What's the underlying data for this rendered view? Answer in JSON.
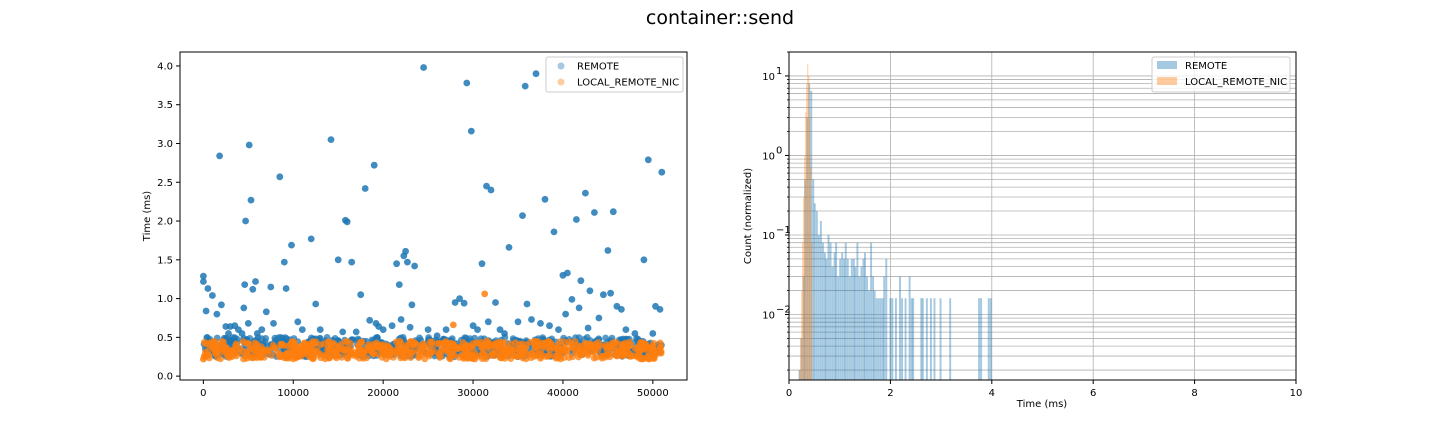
{
  "figure": {
    "suptitle": "container::send"
  },
  "chart_data": [
    {
      "type": "scatter",
      "xlabel": "",
      "ylabel": "Time (ms)",
      "xlim": [
        -2600,
        53800
      ],
      "ylim": [
        -0.05,
        4.18
      ],
      "xticks": [
        0,
        10000,
        20000,
        30000,
        40000,
        50000
      ],
      "xtick_labels": [
        "0",
        "10000",
        "20000",
        "30000",
        "40000",
        "50000"
      ],
      "yticks": [
        0.0,
        0.5,
        1.0,
        1.5,
        2.0,
        2.5,
        3.0,
        3.5,
        4.0
      ],
      "ytick_labels": [
        "0.0",
        "0.5",
        "1.0",
        "1.5",
        "2.0",
        "2.5",
        "3.0",
        "3.5",
        "4.0"
      ],
      "grid": false,
      "legend": {
        "placement": "top-right",
        "entries": [
          {
            "name": "REMOTE",
            "color": "#1f77b4"
          },
          {
            "name": "LOCAL_REMOTE_NIC",
            "color": "#ff7f0e"
          }
        ]
      },
      "series": [
        {
          "name": "REMOTE",
          "color": "#1f77b4",
          "band": {
            "x": [
              0,
              51000
            ],
            "y": [
              0.25,
              0.5
            ]
          },
          "points": [
            [
              0,
              1.29
            ],
            [
              0,
              1.22
            ],
            [
              300,
              0.84
            ],
            [
              500,
              1.13
            ],
            [
              1000,
              1.04
            ],
            [
              1500,
              0.8
            ],
            [
              1800,
              2.84
            ],
            [
              2000,
              0.92
            ],
            [
              2500,
              0.64
            ],
            [
              2800,
              0.55
            ],
            [
              3000,
              0.64
            ],
            [
              3500,
              0.65
            ],
            [
              3900,
              0.6
            ],
            [
              4300,
              0.55
            ],
            [
              4500,
              0.88
            ],
            [
              4600,
              1.18
            ],
            [
              4700,
              2.0
            ],
            [
              5000,
              0.68
            ],
            [
              5100,
              2.98
            ],
            [
              5300,
              2.27
            ],
            [
              5500,
              1.12
            ],
            [
              5800,
              1.22
            ],
            [
              6000,
              0.55
            ],
            [
              6500,
              0.6
            ],
            [
              7000,
              0.83
            ],
            [
              7500,
              1.15
            ],
            [
              7800,
              0.68
            ],
            [
              8500,
              2.57
            ],
            [
              9000,
              1.47
            ],
            [
              9200,
              1.13
            ],
            [
              9800,
              1.69
            ],
            [
              10500,
              0.7
            ],
            [
              11000,
              0.6
            ],
            [
              12000,
              1.77
            ],
            [
              12500,
              0.93
            ],
            [
              13000,
              0.6
            ],
            [
              14200,
              3.05
            ],
            [
              15000,
              1.5
            ],
            [
              15500,
              0.57
            ],
            [
              15800,
              2.01
            ],
            [
              16000,
              1.99
            ],
            [
              16500,
              1.47
            ],
            [
              17000,
              0.57
            ],
            [
              17500,
              1.05
            ],
            [
              18000,
              2.42
            ],
            [
              18500,
              0.72
            ],
            [
              19000,
              2.72
            ],
            [
              19200,
              0.68
            ],
            [
              19500,
              0.64
            ],
            [
              20000,
              0.6
            ],
            [
              21000,
              0.65
            ],
            [
              21500,
              1.45
            ],
            [
              21800,
              1.18
            ],
            [
              22000,
              0.73
            ],
            [
              22300,
              1.55
            ],
            [
              22500,
              1.61
            ],
            [
              22700,
              1.47
            ],
            [
              23000,
              0.63
            ],
            [
              23200,
              0.92
            ],
            [
              23500,
              1.42
            ],
            [
              24500,
              3.98
            ],
            [
              25000,
              0.6
            ],
            [
              26000,
              0.52
            ],
            [
              27000,
              0.6
            ],
            [
              28000,
              0.95
            ],
            [
              28500,
              1.0
            ],
            [
              29000,
              0.94
            ],
            [
              29300,
              3.78
            ],
            [
              29800,
              3.16
            ],
            [
              30000,
              0.65
            ],
            [
              30500,
              0.6
            ],
            [
              31000,
              1.45
            ],
            [
              31500,
              2.45
            ],
            [
              31700,
              0.7
            ],
            [
              32000,
              2.4
            ],
            [
              32500,
              0.95
            ],
            [
              33000,
              0.6
            ],
            [
              33500,
              0.55
            ],
            [
              34000,
              1.66
            ],
            [
              35000,
              0.7
            ],
            [
              35500,
              2.07
            ],
            [
              35800,
              3.74
            ],
            [
              36000,
              0.93
            ],
            [
              36500,
              0.73
            ],
            [
              37000,
              3.9
            ],
            [
              37500,
              0.68
            ],
            [
              38000,
              2.28
            ],
            [
              38500,
              0.65
            ],
            [
              39000,
              1.86
            ],
            [
              39500,
              0.6
            ],
            [
              40000,
              1.3
            ],
            [
              40300,
              0.8
            ],
            [
              40500,
              1.33
            ],
            [
              41000,
              0.99
            ],
            [
              41500,
              2.02
            ],
            [
              41800,
              0.88
            ],
            [
              42000,
              1.23
            ],
            [
              42500,
              2.36
            ],
            [
              42800,
              0.62
            ],
            [
              43000,
              1.1
            ],
            [
              43500,
              2.11
            ],
            [
              44000,
              0.75
            ],
            [
              44500,
              1.05
            ],
            [
              45000,
              1.62
            ],
            [
              45300,
              1.07
            ],
            [
              45600,
              2.12
            ],
            [
              46000,
              0.9
            ],
            [
              46500,
              0.86
            ],
            [
              47000,
              0.6
            ],
            [
              48000,
              0.55
            ],
            [
              49000,
              1.5
            ],
            [
              49500,
              2.79
            ],
            [
              50000,
              0.55
            ],
            [
              50300,
              0.9
            ],
            [
              50800,
              0.86
            ],
            [
              51000,
              2.63
            ]
          ]
        },
        {
          "name": "LOCAL_REMOTE_NIC",
          "color": "#ff7f0e",
          "band": {
            "x": [
              0,
              51000
            ],
            "y": [
              0.22,
              0.45
            ]
          },
          "points": [
            [
              0,
              0.22
            ],
            [
              600,
              0.27
            ],
            [
              1500,
              0.4
            ],
            [
              27800,
              0.66
            ],
            [
              31300,
              1.06
            ]
          ]
        }
      ]
    },
    {
      "type": "bar",
      "subtype": "histogram",
      "xlabel": "Time (ms)",
      "ylabel": "Count (normalized)",
      "xlim": [
        0,
        10
      ],
      "ylim": [
        0.0015,
        20
      ],
      "yscale": "log",
      "xticks": [
        0,
        2,
        4,
        6,
        8,
        10
      ],
      "xtick_labels": [
        "0",
        "2",
        "4",
        "6",
        "8",
        "10"
      ],
      "yticks": [
        0.01,
        0.1,
        1,
        10
      ],
      "ytick_labels": [
        "10",
        "10",
        "10",
        "10"
      ],
      "ytick_exponents": [
        "−2",
        "−1",
        "0",
        "1"
      ],
      "grid": true,
      "legend": {
        "placement": "top-right",
        "entries": [
          {
            "name": "REMOTE",
            "color": "#1f77b4"
          },
          {
            "name": "LOCAL_REMOTE_NIC",
            "color": "#ff7f0e"
          }
        ]
      },
      "series": [
        {
          "name": "REMOTE",
          "color": "#1f77b4",
          "alpha": 0.4,
          "bin_width": 0.038,
          "bins": [
            [
              0.19,
              0.002
            ],
            [
              0.23,
              0.005
            ],
            [
              0.27,
              0.03
            ],
            [
              0.3,
              0.5
            ],
            [
              0.34,
              3.0
            ],
            [
              0.38,
              8.0
            ],
            [
              0.42,
              6.5
            ],
            [
              0.46,
              0.5
            ],
            [
              0.49,
              0.25
            ],
            [
              0.53,
              0.2
            ],
            [
              0.57,
              0.1
            ],
            [
              0.61,
              0.15
            ],
            [
              0.65,
              0.08
            ],
            [
              0.69,
              0.06
            ],
            [
              0.72,
              0.05
            ],
            [
              0.76,
              0.1
            ],
            [
              0.8,
              0.08
            ],
            [
              0.84,
              0.04
            ],
            [
              0.88,
              0.06
            ],
            [
              0.91,
              0.08
            ],
            [
              0.95,
              0.03
            ],
            [
              0.99,
              0.05
            ],
            [
              1.03,
              0.06
            ],
            [
              1.07,
              0.05
            ],
            [
              1.1,
              0.08
            ],
            [
              1.14,
              0.05
            ],
            [
              1.18,
              0.03
            ],
            [
              1.22,
              0.05
            ],
            [
              1.26,
              0.05
            ],
            [
              1.29,
              0.04
            ],
            [
              1.33,
              0.08
            ],
            [
              1.37,
              0.03
            ],
            [
              1.41,
              0.04
            ],
            [
              1.45,
              0.05
            ],
            [
              1.48,
              0.06
            ],
            [
              1.52,
              0.03
            ],
            [
              1.56,
              0.02
            ],
            [
              1.6,
              0.08
            ],
            [
              1.64,
              0.03
            ],
            [
              1.67,
              0.02
            ],
            [
              1.71,
              0.016
            ],
            [
              1.75,
              0.016
            ],
            [
              1.79,
              0.016
            ],
            [
              1.83,
              0.016
            ],
            [
              1.86,
              0.03
            ],
            [
              1.9,
              0.05
            ],
            [
              1.98,
              0.016
            ],
            [
              2.02,
              0.016
            ],
            [
              2.09,
              0.016
            ],
            [
              2.17,
              0.03
            ],
            [
              2.21,
              0.016
            ],
            [
              2.28,
              0.016
            ],
            [
              2.36,
              0.03
            ],
            [
              2.4,
              0.016
            ],
            [
              2.43,
              0.016
            ],
            [
              2.59,
              0.016
            ],
            [
              2.62,
              0.016
            ],
            [
              2.7,
              0.016
            ],
            [
              2.78,
              0.016
            ],
            [
              2.85,
              0.016
            ],
            [
              2.97,
              0.016
            ],
            [
              3.16,
              0.016
            ],
            [
              3.73,
              0.016
            ],
            [
              3.77,
              0.016
            ],
            [
              3.92,
              0.016
            ],
            [
              3.96,
              0.016
            ]
          ]
        },
        {
          "name": "LOCAL_REMOTE_NIC",
          "color": "#ff7f0e",
          "alpha": 0.4,
          "bin_width": 0.02,
          "bins": [
            [
              0.2,
              0.002
            ],
            [
              0.22,
              0.005
            ],
            [
              0.24,
              0.02
            ],
            [
              0.26,
              0.08
            ],
            [
              0.28,
              0.3
            ],
            [
              0.3,
              1.0
            ],
            [
              0.32,
              3.5
            ],
            [
              0.34,
              8.0
            ],
            [
              0.36,
              14.0
            ],
            [
              0.38,
              10.0
            ],
            [
              0.4,
              3.0
            ],
            [
              0.42,
              0.7
            ],
            [
              0.44,
              0.08
            ]
          ]
        }
      ]
    }
  ]
}
